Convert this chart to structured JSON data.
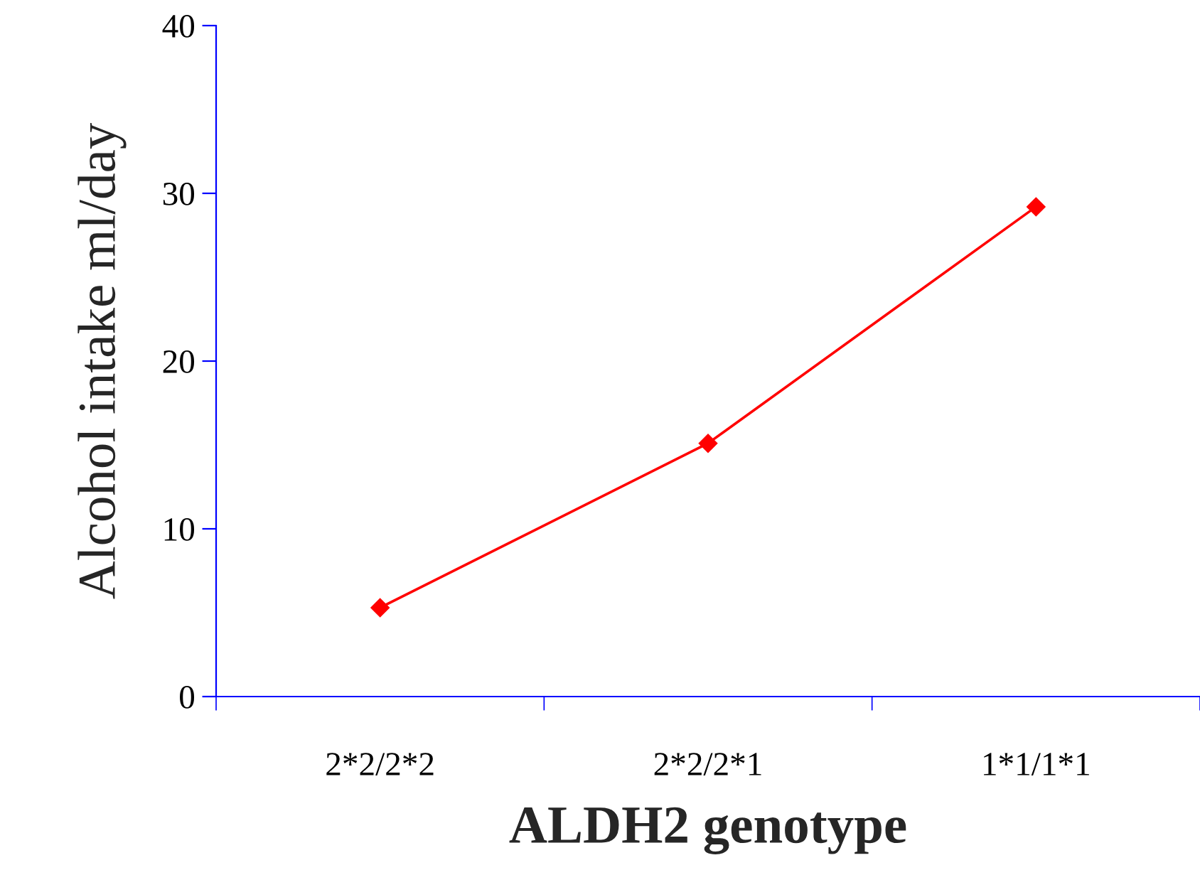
{
  "chart_data": {
    "type": "line",
    "xlabel": "ALDH2 genotype",
    "ylabel": "Alcohol intake ml/day",
    "categories": [
      "2*2/2*2",
      "2*2/2*1",
      "1*1/1*1"
    ],
    "series": [
      {
        "color": "#ff0000",
        "values": [
          5.3,
          15.1,
          29.2
        ]
      }
    ],
    "ylim": [
      0,
      40
    ],
    "yticks": [
      0,
      10,
      20,
      30,
      40
    ],
    "grid": false,
    "marker": "diamond",
    "line_style": "solid"
  }
}
